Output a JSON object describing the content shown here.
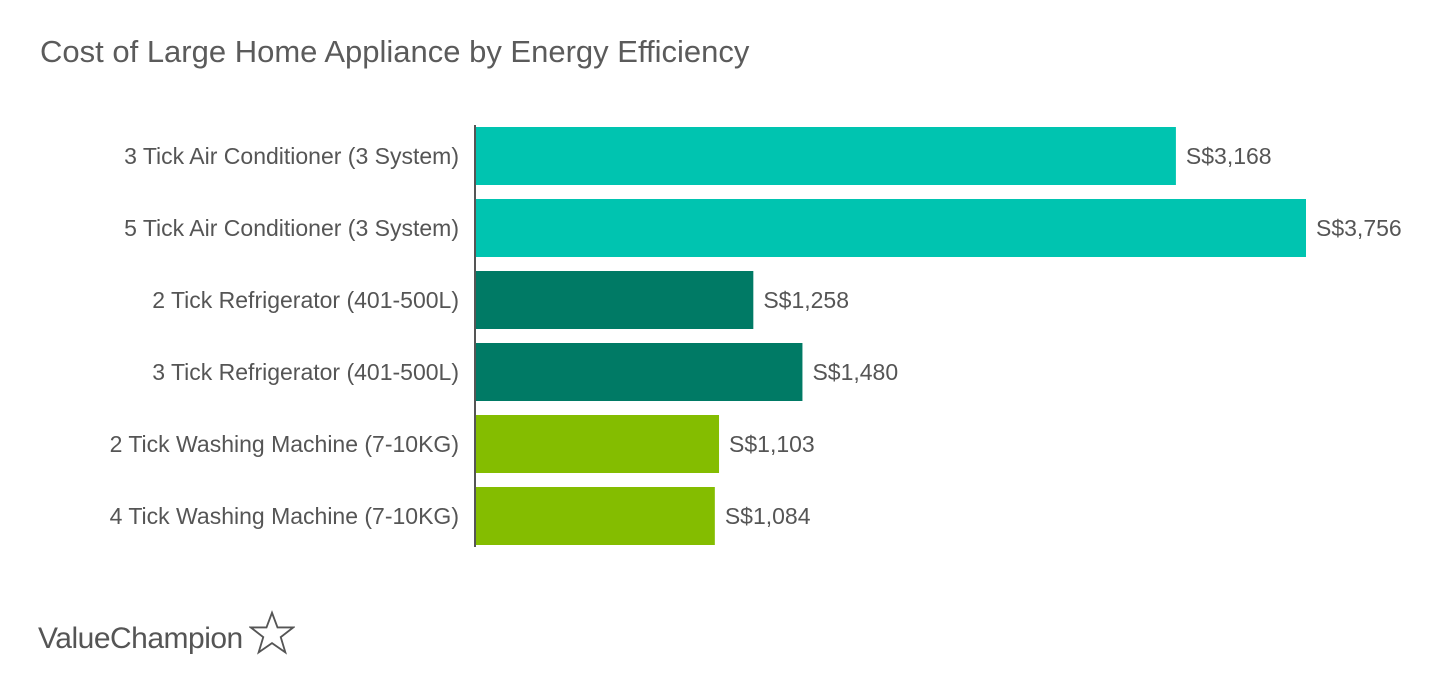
{
  "chart_data": {
    "type": "bar",
    "orientation": "horizontal",
    "title": "Cost of Large Home Appliance by Energy Efficiency",
    "categories": [
      "3 Tick Air Conditioner (3 System)",
      "5 Tick Air Conditioner (3 System)",
      "2 Tick Refrigerator (401-500L)",
      "3 Tick Refrigerator (401-500L)",
      "2 Tick Washing Machine (7-10KG)",
      "4 Tick Washing Machine (7-10KG)"
    ],
    "values": [
      3168,
      3756,
      1258,
      1480,
      1103,
      1084
    ],
    "value_labels": [
      "S$3,168",
      "S$3,756",
      "S$1,258",
      "S$1,480",
      "S$1,103",
      "S$1,084"
    ],
    "bar_colors": [
      "#00c4b0",
      "#00c4b0",
      "#007a65",
      "#007a65",
      "#84bd00",
      "#84bd00"
    ],
    "xlim": [
      0,
      3756
    ],
    "xlabel": "",
    "ylabel": "",
    "grid": false
  },
  "brand": {
    "name": "ValueChampion",
    "logo_icon": "star-outline-icon"
  },
  "colors": {
    "axis": "#555555",
    "text": "#555555"
  }
}
